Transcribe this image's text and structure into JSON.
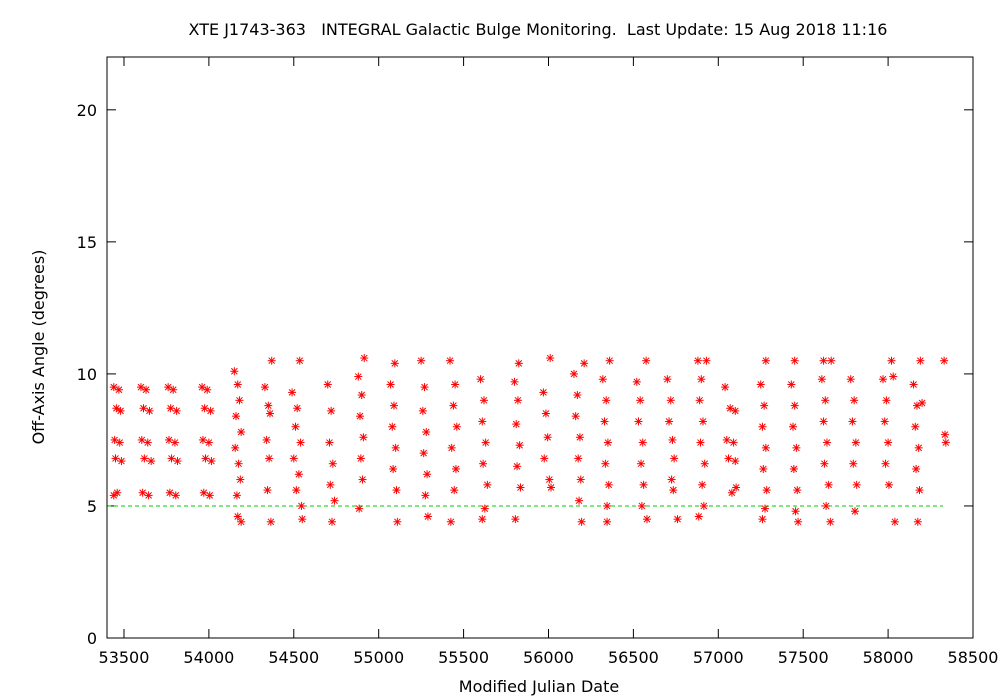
{
  "chart_data": {
    "type": "scatter",
    "title": "XTE J1743-363   INTEGRAL Galactic Bulge Monitoring.  Last Update: 15 Aug 2018 11:16",
    "xlabel": "Modified Julian Date",
    "ylabel": "Off-Axis Angle (degrees)",
    "xlim": [
      53400,
      58500
    ],
    "ylim": [
      0,
      22
    ],
    "x_ticks": [
      53500,
      54000,
      54500,
      55000,
      55500,
      56000,
      56500,
      57000,
      57500,
      58000,
      58500
    ],
    "y_ticks": [
      0,
      5,
      10,
      15,
      20
    ],
    "grid": false,
    "marker_color": "#ff0000",
    "marker": "asterisk",
    "reference_line": {
      "y": 5,
      "color": "#00cc00",
      "style": "dashed"
    },
    "series": [
      {
        "points": [
          [
            53440,
            9.5
          ],
          [
            53470,
            9.4
          ],
          [
            53455,
            8.7
          ],
          [
            53480,
            8.6
          ],
          [
            53445,
            7.5
          ],
          [
            53475,
            7.4
          ],
          [
            53450,
            6.8
          ],
          [
            53485,
            6.7
          ],
          [
            53460,
            5.5
          ],
          [
            53440,
            5.4
          ],
          [
            53600,
            9.5
          ],
          [
            53630,
            9.4
          ],
          [
            53615,
            8.7
          ],
          [
            53650,
            8.6
          ],
          [
            53605,
            7.5
          ],
          [
            53640,
            7.4
          ],
          [
            53620,
            6.8
          ],
          [
            53660,
            6.7
          ],
          [
            53610,
            5.5
          ],
          [
            53645,
            5.4
          ],
          [
            53760,
            9.5
          ],
          [
            53790,
            9.4
          ],
          [
            53775,
            8.7
          ],
          [
            53810,
            8.6
          ],
          [
            53765,
            7.5
          ],
          [
            53800,
            7.4
          ],
          [
            53780,
            6.8
          ],
          [
            53815,
            6.7
          ],
          [
            53770,
            5.5
          ],
          [
            53805,
            5.4
          ],
          [
            53960,
            9.5
          ],
          [
            53990,
            9.4
          ],
          [
            53975,
            8.7
          ],
          [
            54010,
            8.6
          ],
          [
            53965,
            7.5
          ],
          [
            54000,
            7.4
          ],
          [
            53980,
            6.8
          ],
          [
            54015,
            6.7
          ],
          [
            53970,
            5.5
          ],
          [
            54005,
            5.4
          ],
          [
            54150,
            10.1
          ],
          [
            54170,
            9.6
          ],
          [
            54180,
            9.0
          ],
          [
            54160,
            8.4
          ],
          [
            54190,
            7.8
          ],
          [
            54155,
            7.2
          ],
          [
            54175,
            6.6
          ],
          [
            54185,
            6.0
          ],
          [
            54165,
            5.4
          ],
          [
            54170,
            4.6
          ],
          [
            54190,
            4.4
          ],
          [
            54330,
            9.5
          ],
          [
            54350,
            8.8
          ],
          [
            54360,
            8.5
          ],
          [
            54340,
            7.5
          ],
          [
            54355,
            6.8
          ],
          [
            54345,
            5.6
          ],
          [
            54370,
            10.5
          ],
          [
            54365,
            4.4
          ],
          [
            54490,
            9.3
          ],
          [
            54520,
            8.7
          ],
          [
            54510,
            8.0
          ],
          [
            54540,
            7.4
          ],
          [
            54500,
            6.8
          ],
          [
            54530,
            6.2
          ],
          [
            54515,
            5.6
          ],
          [
            54545,
            5.0
          ],
          [
            54535,
            10.5
          ],
          [
            54550,
            4.5
          ],
          [
            54700,
            9.6
          ],
          [
            54720,
            8.6
          ],
          [
            54710,
            7.4
          ],
          [
            54730,
            6.6
          ],
          [
            54715,
            5.8
          ],
          [
            54740,
            5.2
          ],
          [
            54725,
            4.4
          ],
          [
            54880,
            9.9
          ],
          [
            54900,
            9.2
          ],
          [
            54890,
            8.4
          ],
          [
            54910,
            7.6
          ],
          [
            54895,
            6.8
          ],
          [
            54905,
            6.0
          ],
          [
            54915,
            10.6
          ],
          [
            54885,
            4.9
          ],
          [
            55070,
            9.6
          ],
          [
            55090,
            8.8
          ],
          [
            55080,
            8.0
          ],
          [
            55100,
            7.2
          ],
          [
            55085,
            6.4
          ],
          [
            55105,
            5.6
          ],
          [
            55095,
            10.4
          ],
          [
            55110,
            4.4
          ],
          [
            55250,
            10.5
          ],
          [
            55270,
            9.5
          ],
          [
            55260,
            8.6
          ],
          [
            55280,
            7.8
          ],
          [
            55265,
            7.0
          ],
          [
            55285,
            6.2
          ],
          [
            55275,
            5.4
          ],
          [
            55290,
            4.6
          ],
          [
            55420,
            10.5
          ],
          [
            55450,
            9.6
          ],
          [
            55440,
            8.8
          ],
          [
            55460,
            8.0
          ],
          [
            55430,
            7.2
          ],
          [
            55455,
            6.4
          ],
          [
            55445,
            5.6
          ],
          [
            55425,
            4.4
          ],
          [
            55600,
            9.8
          ],
          [
            55620,
            9.0
          ],
          [
            55610,
            8.2
          ],
          [
            55630,
            7.4
          ],
          [
            55615,
            6.6
          ],
          [
            55640,
            5.8
          ],
          [
            55625,
            4.9
          ],
          [
            55610,
            4.5
          ],
          [
            55800,
            9.7
          ],
          [
            55820,
            9.0
          ],
          [
            55810,
            8.1
          ],
          [
            55830,
            7.3
          ],
          [
            55815,
            6.5
          ],
          [
            55835,
            5.7
          ],
          [
            55825,
            10.4
          ],
          [
            55805,
            4.5
          ],
          [
            55970,
            9.3
          ],
          [
            55985,
            8.5
          ],
          [
            55995,
            7.6
          ],
          [
            55975,
            6.8
          ],
          [
            56005,
            6.0
          ],
          [
            56010,
            10.6
          ],
          [
            56015,
            5.7
          ],
          [
            56150,
            10.0
          ],
          [
            56170,
            9.2
          ],
          [
            56160,
            8.4
          ],
          [
            56185,
            7.6
          ],
          [
            56175,
            6.8
          ],
          [
            56190,
            6.0
          ],
          [
            56180,
            5.2
          ],
          [
            56195,
            4.4
          ],
          [
            56210,
            10.4
          ],
          [
            56320,
            9.8
          ],
          [
            56340,
            9.0
          ],
          [
            56330,
            8.2
          ],
          [
            56350,
            7.4
          ],
          [
            56335,
            6.6
          ],
          [
            56355,
            5.8
          ],
          [
            56345,
            5.0
          ],
          [
            56360,
            10.5
          ],
          [
            56345,
            4.4
          ],
          [
            56520,
            9.7
          ],
          [
            56540,
            9.0
          ],
          [
            56530,
            8.2
          ],
          [
            56555,
            7.4
          ],
          [
            56545,
            6.6
          ],
          [
            56560,
            5.8
          ],
          [
            56550,
            5.0
          ],
          [
            56575,
            10.5
          ],
          [
            56580,
            4.5
          ],
          [
            56700,
            9.8
          ],
          [
            56720,
            9.0
          ],
          [
            56710,
            8.2
          ],
          [
            56730,
            7.5
          ],
          [
            56740,
            6.8
          ],
          [
            56725,
            6.0
          ],
          [
            56735,
            5.6
          ],
          [
            56760,
            4.5
          ],
          [
            56880,
            10.5
          ],
          [
            56900,
            9.8
          ],
          [
            56890,
            9.0
          ],
          [
            56910,
            8.2
          ],
          [
            56895,
            7.4
          ],
          [
            56920,
            6.6
          ],
          [
            56905,
            5.8
          ],
          [
            56915,
            5.0
          ],
          [
            56885,
            4.6
          ],
          [
            56930,
            10.5
          ],
          [
            57040,
            9.5
          ],
          [
            57070,
            8.7
          ],
          [
            57100,
            8.6
          ],
          [
            57050,
            7.5
          ],
          [
            57090,
            7.4
          ],
          [
            57060,
            6.8
          ],
          [
            57100,
            6.7
          ],
          [
            57080,
            5.5
          ],
          [
            57105,
            5.7
          ],
          [
            57250,
            9.6
          ],
          [
            57270,
            8.8
          ],
          [
            57260,
            8.0
          ],
          [
            57280,
            7.2
          ],
          [
            57265,
            6.4
          ],
          [
            57285,
            5.6
          ],
          [
            57275,
            4.9
          ],
          [
            57260,
            4.5
          ],
          [
            57280,
            10.5
          ],
          [
            57430,
            9.6
          ],
          [
            57450,
            8.8
          ],
          [
            57440,
            8.0
          ],
          [
            57460,
            7.2
          ],
          [
            57445,
            6.4
          ],
          [
            57465,
            5.6
          ],
          [
            57455,
            4.8
          ],
          [
            57470,
            4.4
          ],
          [
            57450,
            10.5
          ],
          [
            57610,
            9.8
          ],
          [
            57630,
            9.0
          ],
          [
            57620,
            8.2
          ],
          [
            57640,
            7.4
          ],
          [
            57625,
            6.6
          ],
          [
            57650,
            5.8
          ],
          [
            57635,
            5.0
          ],
          [
            57660,
            4.4
          ],
          [
            57620,
            10.5
          ],
          [
            57665,
            10.5
          ],
          [
            57780,
            9.8
          ],
          [
            57800,
            9.0
          ],
          [
            57790,
            8.2
          ],
          [
            57810,
            7.4
          ],
          [
            57795,
            6.6
          ],
          [
            57815,
            5.8
          ],
          [
            57805,
            4.8
          ],
          [
            57970,
            9.8
          ],
          [
            57990,
            9.0
          ],
          [
            57980,
            8.2
          ],
          [
            58000,
            7.4
          ],
          [
            57985,
            6.6
          ],
          [
            58005,
            5.8
          ],
          [
            58020,
            10.5
          ],
          [
            58040,
            4.4
          ],
          [
            58030,
            9.9
          ],
          [
            58150,
            9.6
          ],
          [
            58170,
            8.8
          ],
          [
            58160,
            8.0
          ],
          [
            58180,
            7.2
          ],
          [
            58165,
            6.4
          ],
          [
            58185,
            5.6
          ],
          [
            58175,
            4.4
          ],
          [
            58190,
            10.5
          ],
          [
            58200,
            8.9
          ],
          [
            58330,
            10.5
          ],
          [
            58335,
            7.7
          ],
          [
            58340,
            7.4
          ]
        ]
      }
    ]
  }
}
